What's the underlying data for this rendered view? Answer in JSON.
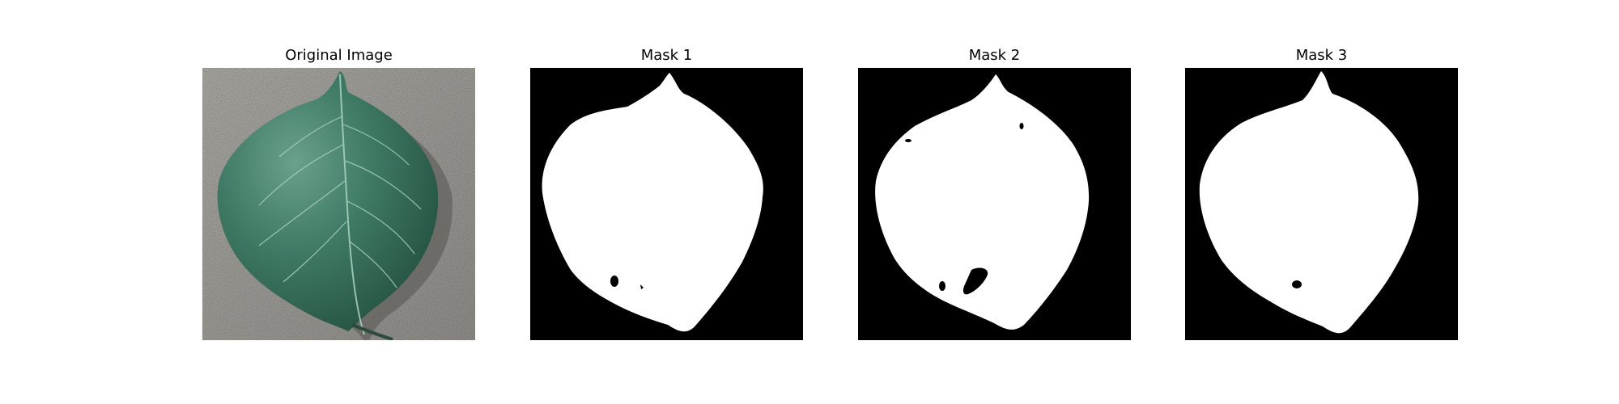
{
  "panels": [
    {
      "title": "Original Image",
      "kind": "photo"
    },
    {
      "title": "Mask 1",
      "kind": "mask"
    },
    {
      "title": "Mask 2",
      "kind": "mask"
    },
    {
      "title": "Mask 3",
      "kind": "mask"
    }
  ],
  "colors": {
    "background": "#ffffff",
    "mask_background": "#000000",
    "mask_foreground": "#ffffff",
    "concrete": "#a4a39d",
    "leaf": "#356f5a",
    "leaf_highlight": "#6aa08c",
    "vein": "#a9d3bf"
  }
}
